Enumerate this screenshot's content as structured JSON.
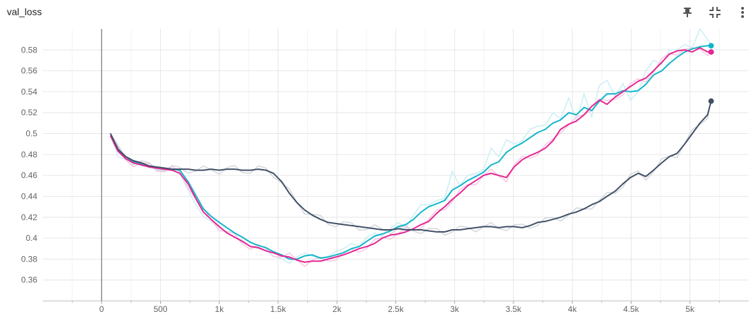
{
  "header": {
    "title": "val_loss",
    "tools": [
      {
        "icon": "pin-icon"
      },
      {
        "icon": "fit-to-data-icon"
      },
      {
        "icon": "more-vert-icon"
      }
    ]
  },
  "chart_data": {
    "type": "line",
    "title": "val_loss",
    "xlabel": "",
    "ylabel": "",
    "xlim": [
      -500,
      5500
    ],
    "ylim": [
      0.34,
      0.6
    ],
    "x_ticks": [
      0,
      500,
      1000,
      1500,
      2000,
      2500,
      3000,
      3500,
      4000,
      4500,
      5000
    ],
    "x_tick_labels": [
      "0",
      "500",
      "1k",
      "1.5k",
      "2k",
      "2.5k",
      "3k",
      "3.5k",
      "4k",
      "4.5k",
      "5k"
    ],
    "y_ticks": [
      0.36,
      0.38,
      0.4,
      0.42,
      0.44,
      0.46,
      0.48,
      0.5,
      0.52,
      0.54,
      0.56,
      0.58
    ],
    "y_tick_labels": [
      "0.36",
      "0.38",
      "0.4",
      "0.42",
      "0.44",
      "0.46",
      "0.48",
      "0.5",
      "0.52",
      "0.54",
      "0.56",
      "0.58"
    ],
    "grid": true,
    "legend": "none",
    "x": [
      75,
      140,
      205,
      270,
      340,
      405,
      470,
      535,
      600,
      665,
      735,
      800,
      865,
      930,
      1000,
      1065,
      1130,
      1195,
      1265,
      1330,
      1395,
      1460,
      1530,
      1595,
      1660,
      1725,
      1790,
      1860,
      1925,
      1990,
      2055,
      2125,
      2190,
      2255,
      2320,
      2385,
      2455,
      2520,
      2585,
      2650,
      2715,
      2780,
      2850,
      2915,
      2980,
      3045,
      3110,
      3180,
      3245,
      3310,
      3375,
      3440,
      3505,
      3575,
      3640,
      3705,
      3770,
      3835,
      3900,
      3970,
      4035,
      4100,
      4165,
      4230,
      4295,
      4365,
      4430,
      4495,
      4560,
      4625,
      4690,
      4760,
      4825,
      4890,
      4955,
      5020,
      5085,
      5150,
      5180
    ],
    "series": [
      {
        "color": "#12b5cb",
        "raw_color": "#c9eef4",
        "smoothed": [
          0.5,
          0.484,
          0.478,
          0.473,
          0.471,
          0.468,
          0.467,
          0.466,
          0.466,
          0.465,
          0.454,
          0.441,
          0.428,
          0.421,
          0.415,
          0.41,
          0.405,
          0.401,
          0.396,
          0.393,
          0.391,
          0.387,
          0.384,
          0.38,
          0.38,
          0.383,
          0.384,
          0.381,
          0.382,
          0.384,
          0.386,
          0.39,
          0.392,
          0.397,
          0.402,
          0.404,
          0.407,
          0.411,
          0.413,
          0.418,
          0.425,
          0.43,
          0.433,
          0.436,
          0.446,
          0.45,
          0.455,
          0.459,
          0.463,
          0.47,
          0.473,
          0.482,
          0.487,
          0.491,
          0.496,
          0.501,
          0.504,
          0.51,
          0.513,
          0.52,
          0.518,
          0.525,
          0.522,
          0.531,
          0.538,
          0.538,
          0.541,
          0.54,
          0.541,
          0.547,
          0.556,
          0.56,
          0.567,
          0.573,
          0.578,
          0.581,
          0.583,
          0.584,
          0.584
        ],
        "raw": [
          0.5,
          0.478,
          0.475,
          0.472,
          0.469,
          0.468,
          0.466,
          0.465,
          0.466,
          0.461,
          0.446,
          0.432,
          0.421,
          0.416,
          0.41,
          0.406,
          0.401,
          0.398,
          0.392,
          0.39,
          0.388,
          0.383,
          0.38,
          0.376,
          0.382,
          0.386,
          0.383,
          0.38,
          0.383,
          0.387,
          0.39,
          0.395,
          0.392,
          0.401,
          0.405,
          0.402,
          0.409,
          0.415,
          0.41,
          0.422,
          0.432,
          0.432,
          0.436,
          0.438,
          0.464,
          0.45,
          0.46,
          0.462,
          0.465,
          0.486,
          0.478,
          0.494,
          0.49,
          0.493,
          0.504,
          0.507,
          0.508,
          0.52,
          0.514,
          0.534,
          0.512,
          0.538,
          0.516,
          0.546,
          0.551,
          0.536,
          0.548,
          0.532,
          0.54,
          0.56,
          0.57,
          0.566,
          0.58,
          0.58,
          0.585,
          0.582,
          0.6,
          0.59,
          0.585
        ]
      },
      {
        "color": "#e52592",
        "raw_color": "#f6c6e0",
        "smoothed": [
          0.498,
          0.483,
          0.476,
          0.472,
          0.47,
          0.468,
          0.467,
          0.466,
          0.465,
          0.462,
          0.452,
          0.438,
          0.425,
          0.418,
          0.411,
          0.405,
          0.401,
          0.397,
          0.392,
          0.391,
          0.388,
          0.386,
          0.383,
          0.382,
          0.379,
          0.377,
          0.378,
          0.378,
          0.38,
          0.382,
          0.384,
          0.387,
          0.39,
          0.392,
          0.395,
          0.4,
          0.403,
          0.404,
          0.406,
          0.409,
          0.413,
          0.416,
          0.424,
          0.43,
          0.437,
          0.443,
          0.45,
          0.455,
          0.46,
          0.462,
          0.46,
          0.458,
          0.468,
          0.475,
          0.479,
          0.482,
          0.486,
          0.493,
          0.504,
          0.509,
          0.512,
          0.518,
          0.526,
          0.532,
          0.528,
          0.535,
          0.54,
          0.545,
          0.55,
          0.553,
          0.56,
          0.568,
          0.576,
          0.579,
          0.58,
          0.578,
          0.582,
          0.578,
          0.578
        ]
      },
      {
        "color": "#425066",
        "raw_color": "#d2d6dc",
        "smoothed": [
          0.5,
          0.485,
          0.478,
          0.474,
          0.472,
          0.469,
          0.468,
          0.467,
          0.466,
          0.466,
          0.466,
          0.465,
          0.465,
          0.466,
          0.465,
          0.466,
          0.466,
          0.465,
          0.465,
          0.466,
          0.465,
          0.462,
          0.454,
          0.443,
          0.434,
          0.427,
          0.422,
          0.418,
          0.415,
          0.414,
          0.413,
          0.412,
          0.411,
          0.41,
          0.409,
          0.408,
          0.408,
          0.409,
          0.408,
          0.408,
          0.408,
          0.407,
          0.406,
          0.406,
          0.408,
          0.408,
          0.409,
          0.41,
          0.411,
          0.411,
          0.41,
          0.411,
          0.411,
          0.41,
          0.412,
          0.415,
          0.416,
          0.418,
          0.42,
          0.423,
          0.425,
          0.428,
          0.432,
          0.435,
          0.44,
          0.445,
          0.452,
          0.458,
          0.462,
          0.459,
          0.465,
          0.472,
          0.478,
          0.481,
          0.49,
          0.5,
          0.51,
          0.518,
          0.531
        ]
      }
    ]
  }
}
